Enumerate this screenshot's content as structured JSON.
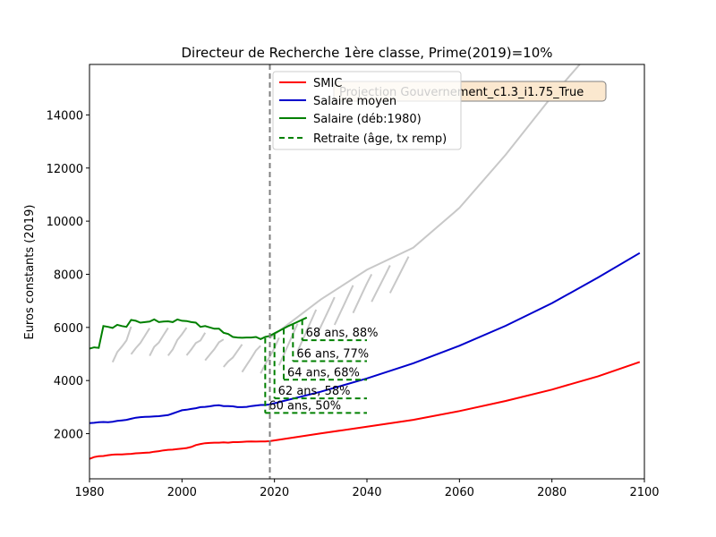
{
  "chart_data": {
    "type": "line",
    "title": "Directeur de Recherche 1ère classe, Prime(2019)=10%",
    "xlabel": "",
    "ylabel": "Euros constants (2019)",
    "xlim": [
      1980,
      2100
    ],
    "ylim": [
      300,
      15900
    ],
    "xticks": [
      1980,
      2000,
      2020,
      2040,
      2060,
      2080,
      2100
    ],
    "yticks": [
      2000,
      4000,
      6000,
      8000,
      10000,
      12000,
      14000
    ],
    "grid": false,
    "legend_position": "top-center",
    "vline": {
      "x": 2019,
      "color": "#808080",
      "style": "dashed"
    },
    "annotation_box": {
      "text": "Projection Gouvernement_c1.3_i1.75_True",
      "background": "#fbe8cf"
    },
    "colors": {
      "smic": "#ff0000",
      "salaire_moyen": "#0000cc",
      "salaire": "#008000",
      "retraite": "#008000",
      "projection": "#c8c8c8"
    },
    "series": [
      {
        "name": "SMIC",
        "key": "smic",
        "x": [
          1980,
          1981,
          1982,
          1983,
          1984,
          1985,
          1986,
          1987,
          1988,
          1989,
          1990,
          1991,
          1992,
          1993,
          1994,
          1995,
          1996,
          1997,
          1998,
          1999,
          2000,
          2001,
          2002,
          2003,
          2004,
          2005,
          2006,
          2007,
          2008,
          2009,
          2010,
          2011,
          2012,
          2013,
          2014,
          2015,
          2016,
          2017,
          2018,
          2019,
          2030,
          2040,
          2050,
          2060,
          2070,
          2080,
          2090,
          2099
        ],
        "y": [
          1050,
          1120,
          1150,
          1160,
          1190,
          1210,
          1220,
          1220,
          1230,
          1240,
          1260,
          1270,
          1280,
          1290,
          1320,
          1340,
          1370,
          1390,
          1400,
          1420,
          1440,
          1460,
          1500,
          1570,
          1610,
          1640,
          1650,
          1660,
          1660,
          1670,
          1660,
          1680,
          1680,
          1690,
          1700,
          1710,
          1700,
          1710,
          1710,
          1720,
          2010,
          2260,
          2520,
          2850,
          3230,
          3660,
          4160,
          4700
        ]
      },
      {
        "name": "Salaire moyen",
        "key": "salaire_moyen",
        "x": [
          1980,
          1981,
          1982,
          1983,
          1984,
          1985,
          1986,
          1987,
          1988,
          1989,
          1990,
          1991,
          1992,
          1993,
          1994,
          1995,
          1996,
          1997,
          1998,
          1999,
          2000,
          2001,
          2002,
          2003,
          2004,
          2005,
          2006,
          2007,
          2008,
          2009,
          2010,
          2011,
          2012,
          2013,
          2014,
          2015,
          2016,
          2017,
          2018,
          2019,
          2030,
          2040,
          2050,
          2060,
          2070,
          2080,
          2090,
          2099
        ],
        "y": [
          2400,
          2410,
          2430,
          2440,
          2430,
          2450,
          2480,
          2500,
          2520,
          2560,
          2600,
          2620,
          2630,
          2640,
          2650,
          2660,
          2680,
          2700,
          2760,
          2820,
          2880,
          2900,
          2930,
          2960,
          3000,
          3010,
          3030,
          3060,
          3070,
          3040,
          3040,
          3030,
          3000,
          3000,
          3010,
          3040,
          3060,
          3080,
          3080,
          3100,
          3580,
          4080,
          4650,
          5310,
          6060,
          6910,
          7880,
          8800
        ]
      },
      {
        "name": "Salaire (déb:1980)",
        "key": "salaire",
        "x": [
          1980,
          1981,
          1982,
          1983,
          1984,
          1985,
          1986,
          1987,
          1988,
          1989,
          1990,
          1991,
          1992,
          1993,
          1994,
          1995,
          1996,
          1997,
          1998,
          1999,
          2000,
          2001,
          2002,
          2003,
          2004,
          2005,
          2006,
          2007,
          2008,
          2009,
          2010,
          2011,
          2012,
          2013,
          2014,
          2015,
          2016,
          2017,
          2018,
          2019,
          2020,
          2021,
          2022,
          2023,
          2024,
          2025,
          2026,
          2027
        ],
        "y": [
          5200,
          5250,
          5230,
          6050,
          6020,
          5980,
          6100,
          6050,
          6020,
          6280,
          6250,
          6180,
          6200,
          6220,
          6300,
          6200,
          6220,
          6230,
          6200,
          6300,
          6250,
          6240,
          6200,
          6180,
          6020,
          6050,
          6000,
          5950,
          5950,
          5800,
          5750,
          5640,
          5620,
          5610,
          5620,
          5620,
          5640,
          5560,
          5640,
          5680,
          5780,
          5870,
          5960,
          6050,
          6130,
          6210,
          6290,
          6370
        ]
      }
    ],
    "projection_curve": {
      "x": [
        2019,
        2030,
        2040,
        2050,
        2060,
        2070,
        2080,
        2086
      ],
      "y": [
        5600,
        7050,
        8170,
        9000,
        10500,
        12500,
        14700,
        15900
      ]
    },
    "legend": {
      "smic": "SMIC",
      "salaire_moyen": "Salaire moyen",
      "salaire": "Salaire (déb:1980)",
      "retraite": "Retraite (âge, tx remp)"
    },
    "retraites": [
      {
        "label": "60 ans, 50%",
        "start_year": 2018,
        "end_year": 2040,
        "level": 2780,
        "top": 5600
      },
      {
        "label": "62 ans, 58%",
        "start_year": 2020,
        "end_year": 2040,
        "level": 3330,
        "top": 5750
      },
      {
        "label": "64 ans, 68%",
        "start_year": 2022,
        "end_year": 2040,
        "level": 4030,
        "top": 5940
      },
      {
        "label": "66 ans, 77%",
        "start_year": 2024,
        "end_year": 2040,
        "level": 4730,
        "top": 6120
      },
      {
        "label": "68 ans, 88%",
        "start_year": 2026,
        "end_year": 2040,
        "level": 5520,
        "top": 6290
      }
    ]
  }
}
